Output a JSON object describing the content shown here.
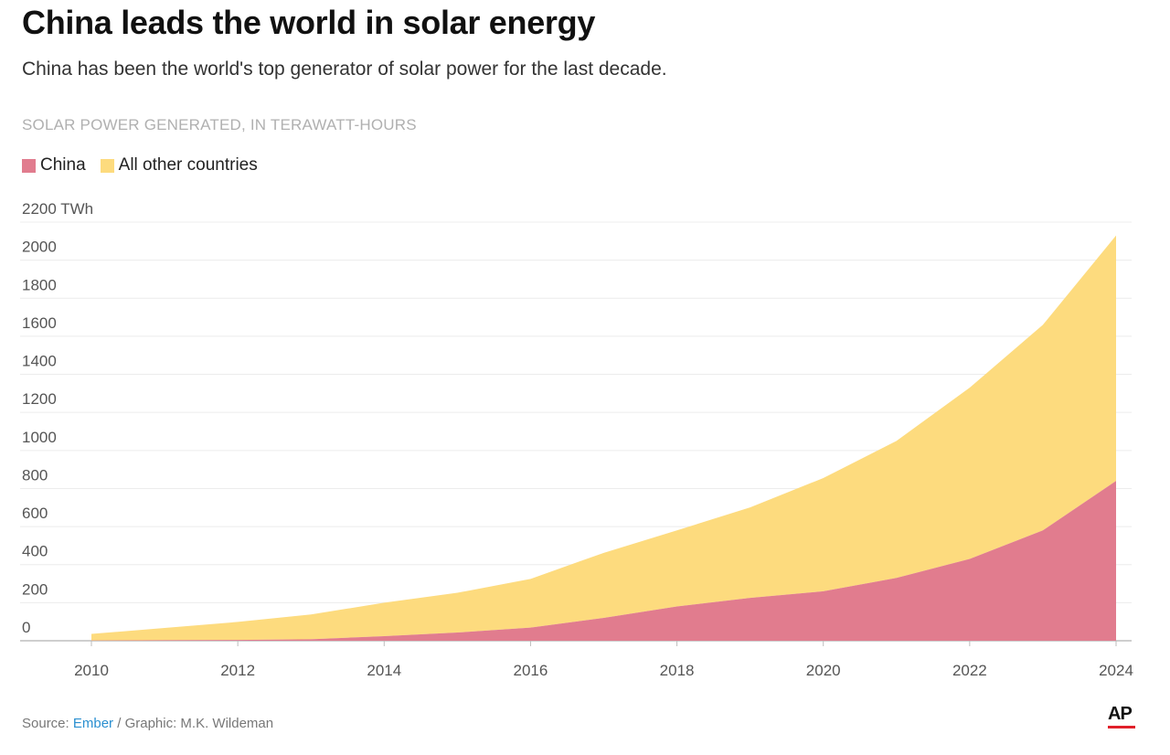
{
  "header": {
    "title": "China leads the world in solar energy",
    "subtitle": "China has been the world's top generator of solar power for the last decade.",
    "unit_label": "SOLAR POWER GENERATED, IN TERAWATT-HOURS"
  },
  "legend": {
    "items": [
      {
        "label": "China",
        "color": "#e17c8e"
      },
      {
        "label": "All other countries",
        "color": "#fddb7e"
      }
    ]
  },
  "footer": {
    "source_prefix": "Source: ",
    "source_link": "Ember",
    "source_suffix": " / Graphic: M.K. Wildeman",
    "logo": "AP"
  },
  "chart_data": {
    "type": "area",
    "stacked": true,
    "x": [
      2010,
      2011,
      2012,
      2013,
      2014,
      2015,
      2016,
      2017,
      2018,
      2019,
      2020,
      2021,
      2022,
      2023,
      2024
    ],
    "series": [
      {
        "name": "China",
        "values": [
          1,
          3,
          4,
          8,
          24,
          43,
          69,
          120,
          180,
          225,
          260,
          330,
          430,
          580,
          840
        ]
      },
      {
        "name": "All other countries",
        "values": [
          35,
          64,
          95,
          130,
          176,
          209,
          256,
          342,
          400,
          476,
          595,
          720,
          900,
          1080,
          1290
        ]
      }
    ],
    "colors": [
      "#e17c8e",
      "#fddb7e"
    ],
    "ylim": [
      0,
      2200
    ],
    "yticks": [
      0,
      200,
      400,
      600,
      800,
      1000,
      1200,
      1400,
      1600,
      1800,
      2000,
      2200
    ],
    "ytick_labels": [
      "0",
      "200",
      "400",
      "600",
      "800",
      "1000",
      "1200",
      "1400",
      "1600",
      "1800",
      "2000",
      "2200 TWh"
    ],
    "xticks": [
      2010,
      2012,
      2014,
      2016,
      2018,
      2020,
      2022,
      2024
    ],
    "xtick_labels": [
      "2010",
      "2012",
      "2014",
      "2016",
      "2018",
      "2020",
      "2022",
      "2024"
    ],
    "grid": true,
    "legend_position": "top-left"
  }
}
